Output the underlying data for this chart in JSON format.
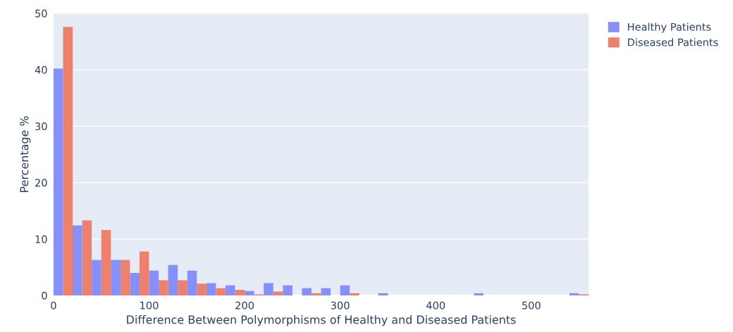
{
  "chart_data": {
    "type": "histogram",
    "xlabel": "Difference Between Polymorphisms of Healthy and Diseased Patients",
    "ylabel": "Percentage %",
    "bins": [
      0,
      20,
      40,
      60,
      80,
      100,
      120,
      140,
      160,
      180,
      200,
      220,
      240,
      260,
      280,
      300,
      320,
      340,
      360,
      380,
      400,
      420,
      440,
      460,
      480,
      500,
      520,
      540,
      560
    ],
    "series": [
      {
        "name": "Healthy Patients",
        "color": "#8590f8",
        "values": [
          40.2,
          12.4,
          6.3,
          6.3,
          4.0,
          4.4,
          5.4,
          4.4,
          2.2,
          1.8,
          0.8,
          2.2,
          1.8,
          1.3,
          1.3,
          1.8,
          0,
          0.4,
          0,
          0,
          0,
          0,
          0.4,
          0,
          0,
          0,
          0,
          0.4
        ]
      },
      {
        "name": "Diseased Patients",
        "color": "#ee806e",
        "values": [
          47.6,
          13.3,
          11.6,
          6.3,
          7.8,
          2.7,
          2.7,
          2.1,
          1.3,
          1.0,
          0.2,
          0.7,
          0,
          0.4,
          0,
          0.4,
          0,
          0,
          0,
          0,
          0,
          0,
          0,
          0,
          0,
          0,
          0,
          0.2
        ]
      }
    ],
    "xlim": [
      0,
      560
    ],
    "xticks": [
      0,
      100,
      200,
      300,
      400,
      500
    ],
    "ylim": [
      0,
      50
    ],
    "yticks": [
      0,
      10,
      20,
      30,
      40,
      50
    ],
    "grid": "y",
    "legend": "top right"
  }
}
